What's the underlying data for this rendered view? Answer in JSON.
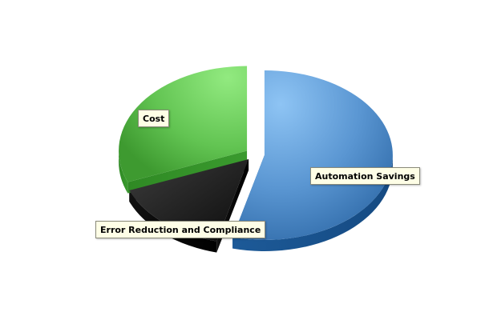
{
  "chart_data": {
    "type": "pie",
    "style": "3d-exploded",
    "title": "",
    "slices": [
      {
        "label": "Automation Savings",
        "value": 54,
        "color": "#4a86c8"
      },
      {
        "label": "Error Reduction and Compliance",
        "value": 15,
        "color": "#1c1c1c"
      },
      {
        "label": "Cost",
        "value": 31,
        "color": "#58c048"
      }
    ]
  }
}
